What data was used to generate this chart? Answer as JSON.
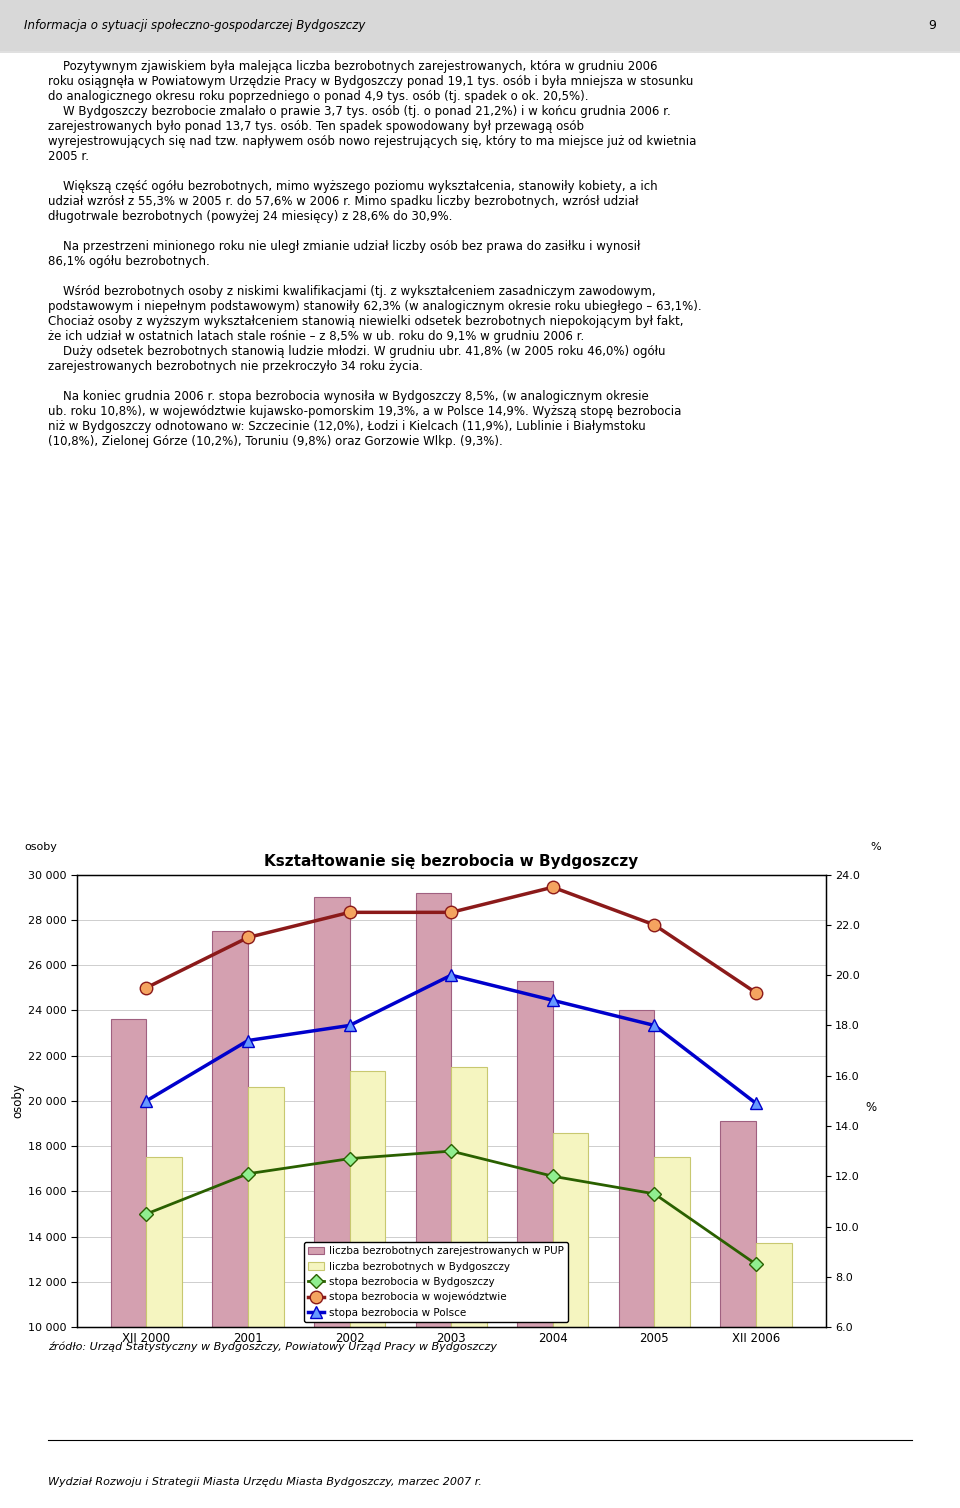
{
  "title": "Kształtowanie się bezrobocia w Bydgoszczy",
  "ylabel_left": "osoby",
  "ylabel_right": "%",
  "xlabels": [
    "XII 2000",
    "2001",
    "2002",
    "2003",
    "2004",
    "2005",
    "XII 2006"
  ],
  "bar_pup": [
    23600,
    27500,
    29000,
    29200,
    25300,
    24000,
    19100
  ],
  "bar_bydgoszcz": [
    17500,
    20600,
    21300,
    21500,
    18600,
    17500,
    13700
  ],
  "line_bydgoszcz": [
    10.5,
    12.1,
    12.7,
    13.0,
    12.0,
    11.3,
    8.5
  ],
  "line_wojewodztwo": [
    19.5,
    21.5,
    22.5,
    22.5,
    23.5,
    22.0,
    19.3
  ],
  "line_polska": [
    15.0,
    17.4,
    18.0,
    20.0,
    19.0,
    18.0,
    14.9
  ],
  "bar_pup_color": "#d4a0b0",
  "bar_bydgoszcz_color": "#f5f5c0",
  "line_bydgoszcz_color": "#2a6000",
  "line_wojewodztwo_color": "#8b1a1a",
  "line_polska_color": "#0000cc",
  "bar_pup_edge": "#a06080",
  "bar_bydgoszcz_edge": "#c8c870",
  "ylim_left": [
    10000,
    30000
  ],
  "ylim_right": [
    6.0,
    24.0
  ],
  "yticks_left": [
    10000,
    12000,
    14000,
    16000,
    18000,
    20000,
    22000,
    24000,
    26000,
    28000,
    30000
  ],
  "yticks_right": [
    6.0,
    8.0,
    10.0,
    12.0,
    14.0,
    16.0,
    18.0,
    20.0,
    22.0,
    24.0
  ],
  "legend_pup": "liczba bezrobotnych zarejestrowanych w PUP",
  "legend_bydgoszcz_bar": "liczba bezrobotnych w Bydgoszczy",
  "legend_bydgoszcz_line": "stopa bezrobocia w Bydgoszczy",
  "legend_wojewodztwo": "stopa bezrobocia w województwie",
  "legend_polska": "stopa bezrobocia w Polsce",
  "source_text": "źródło: Urząd Statystyczny w Bydgoszczy, Powiatowy Urząd Pracy w Bydgoszczy",
  "footer_text": "Wydział Rozwoju i Strategii Miasta Urzędu Miasta Bydgoszczy, marzec 2007 r.",
  "header_text": "Informacja o sytuacji społeczno-gospodarczej Bydgoszczy",
  "page_number": "9"
}
